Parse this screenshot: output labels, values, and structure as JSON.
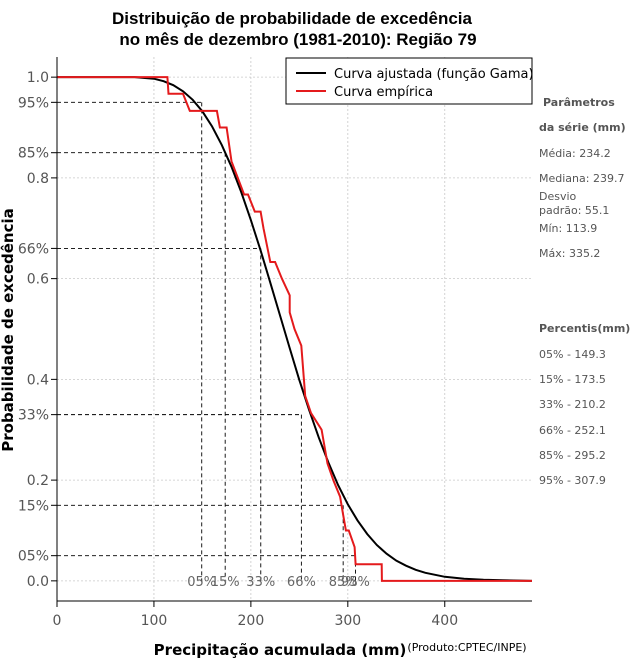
{
  "chart_data": {
    "type": "line",
    "title": [
      "Distribuição de probabilidade de excedência",
      "no mês de dezembro (1981-2010): Região 79"
    ],
    "xlabel": "Precipitação acumulada (mm)",
    "ylabel": "Probabilidade de excedência",
    "credit": "(Produto:CPTEC/INPE)",
    "xlim": [
      0,
      490
    ],
    "ylim": [
      -0.04,
      1.04
    ],
    "x_ticks": [
      0,
      100,
      200,
      300,
      400
    ],
    "y_ticks": [
      {
        "value": 0.0,
        "label": "0.0"
      },
      {
        "value": 0.05,
        "label": "05%"
      },
      {
        "value": 0.15,
        "label": "15%"
      },
      {
        "value": 0.2,
        "label": "0.2"
      },
      {
        "value": 0.33,
        "label": "33%"
      },
      {
        "value": 0.4,
        "label": "0.4"
      },
      {
        "value": 0.6,
        "label": "0.6"
      },
      {
        "value": 0.66,
        "label": "66%"
      },
      {
        "value": 0.8,
        "label": "0.8"
      },
      {
        "value": 0.85,
        "label": "85%"
      },
      {
        "value": 0.95,
        "label": "95%"
      },
      {
        "value": 1.0,
        "label": "1.0"
      }
    ],
    "grid": true,
    "legend": [
      "Curva ajustada (função Gama)",
      "Curva empírica"
    ],
    "legend_position": "top-right",
    "series": [
      {
        "name": "Curva ajustada (função Gama)",
        "color": "#000000",
        "x": [
          0,
          80,
          100,
          110,
          120,
          130,
          140,
          150,
          160,
          170,
          180,
          190,
          200,
          210,
          220,
          230,
          240,
          250,
          260,
          270,
          280,
          290,
          300,
          310,
          320,
          330,
          340,
          350,
          360,
          370,
          380,
          400,
          420,
          440,
          460,
          490
        ],
        "y": [
          1.0,
          1.0,
          0.997,
          0.992,
          0.984,
          0.972,
          0.955,
          0.932,
          0.902,
          0.865,
          0.822,
          0.772,
          0.716,
          0.656,
          0.592,
          0.527,
          0.462,
          0.399,
          0.34,
          0.285,
          0.235,
          0.19,
          0.152,
          0.12,
          0.093,
          0.071,
          0.054,
          0.04,
          0.03,
          0.022,
          0.016,
          0.008,
          0.004,
          0.002,
          0.001,
          0.0
        ]
      },
      {
        "name": "Curva empírica",
        "color": "#e41a1c",
        "x": [
          0,
          113.9,
          115,
          130,
          137,
          152,
          165,
          168,
          175,
          180,
          193,
          197,
          204,
          210,
          213,
          220,
          225,
          232,
          240,
          240,
          245,
          252,
          256,
          262,
          273,
          273,
          279,
          285,
          292,
          295,
          298,
          301,
          307,
          308,
          314,
          320,
          335,
          335.2,
          340,
          490
        ],
        "y": [
          1.0,
          1.0,
          0.967,
          0.967,
          0.933,
          0.933,
          0.933,
          0.9,
          0.9,
          0.833,
          0.767,
          0.767,
          0.733,
          0.733,
          0.7,
          0.633,
          0.633,
          0.6,
          0.567,
          0.533,
          0.5,
          0.467,
          0.367,
          0.333,
          0.3,
          0.3,
          0.233,
          0.2,
          0.167,
          0.133,
          0.1,
          0.1,
          0.067,
          0.033,
          0.033,
          0.033,
          0.033,
          0.0,
          0.0,
          0.0
        ]
      }
    ],
    "percentile_guides": [
      {
        "label": "05%",
        "x": 149.3,
        "p": 0.95
      },
      {
        "label": "15%",
        "x": 173.5,
        "p": 0.85
      },
      {
        "label": "33%",
        "x": 210.2,
        "p": 0.66
      },
      {
        "label": "66%",
        "x": 252.1,
        "p": 0.33
      },
      {
        "label": "85%",
        "x": 295.2,
        "p": 0.15
      },
      {
        "label": "95%",
        "x": 307.9,
        "p": 0.05
      }
    ]
  },
  "sidebar": {
    "params_title_1": "Parâmetros",
    "params_title_2": "da série (mm)",
    "media": "Média: 234.2",
    "mediana": "Mediana: 239.7",
    "desvio_1": "Desvio",
    "desvio_2": "padrão: 55.1",
    "min": "Mín: 113.9",
    "max": "Máx: 335.2",
    "percentis_title": "Percentis(mm)",
    "p05": "05% - 149.3",
    "p15": "15% - 173.5",
    "p33": "33% - 210.2",
    "p66": "66% - 252.1",
    "p85": "85% - 295.2",
    "p95": "95% - 307.9"
  }
}
